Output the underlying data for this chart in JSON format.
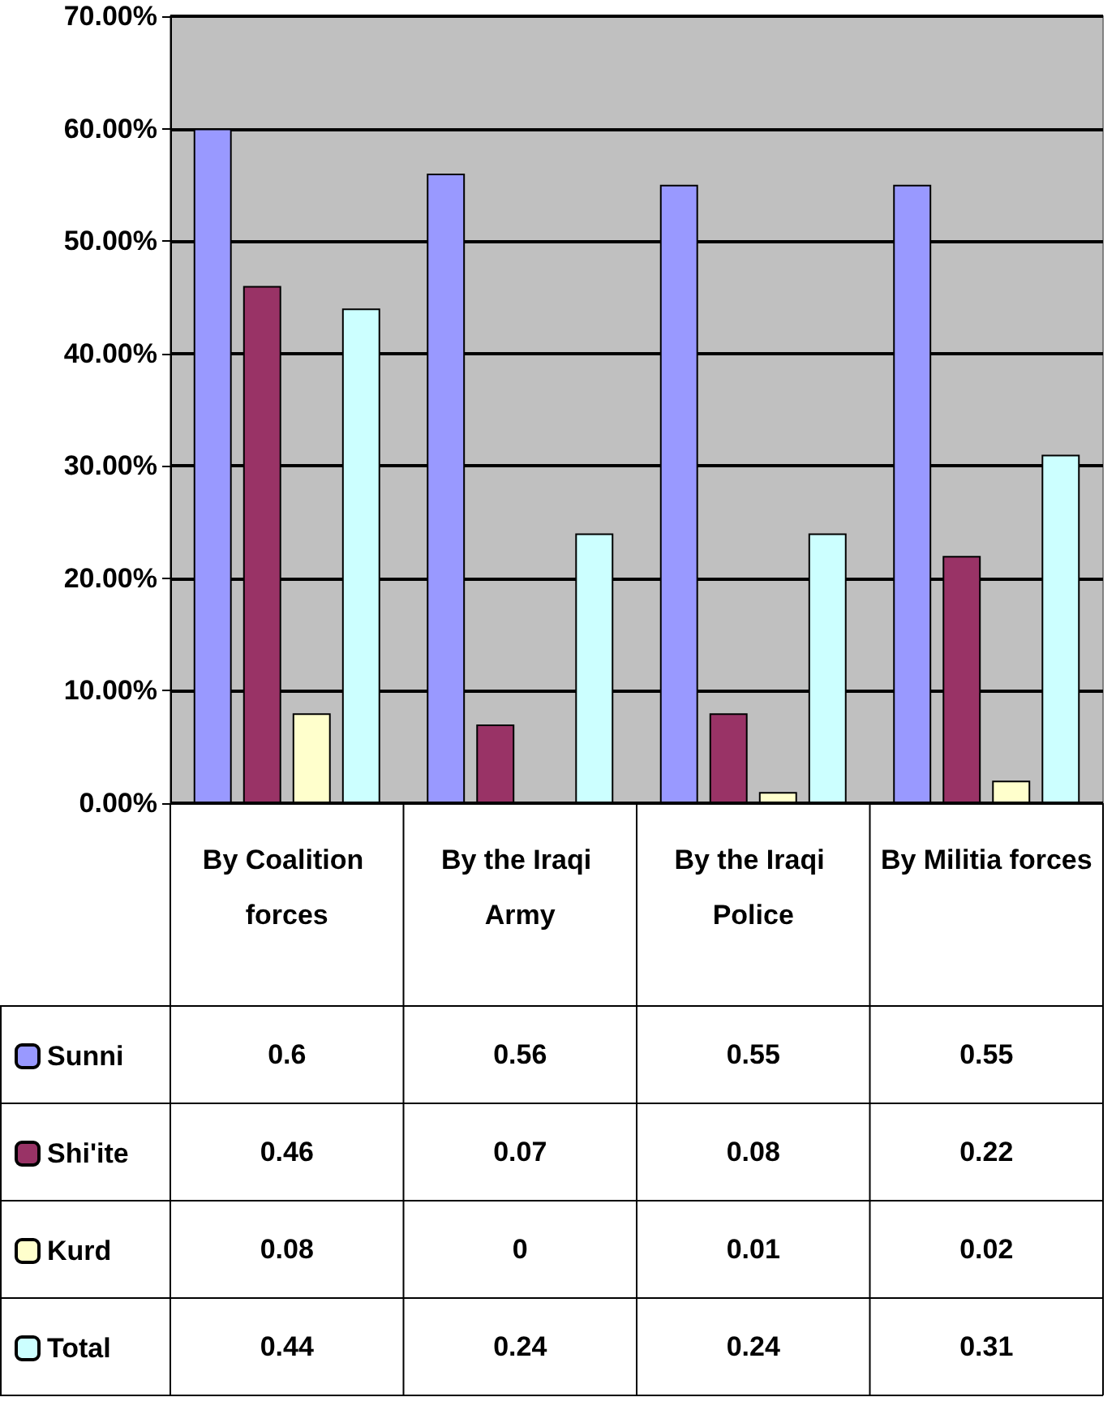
{
  "chart_data": {
    "type": "bar",
    "categories": [
      "By Coalition forces",
      "By the Iraqi Army",
      "By the Iraqi Police",
      "By Militia forces"
    ],
    "series": [
      {
        "name": "Sunni",
        "color": "#9999ff",
        "values": [
          0.6,
          0.56,
          0.55,
          0.55
        ]
      },
      {
        "name": "Shi'ite",
        "color": "#993366",
        "values": [
          0.46,
          0.07,
          0.08,
          0.22
        ]
      },
      {
        "name": "Kurd",
        "color": "#ffffcc",
        "values": [
          0.08,
          0,
          0.01,
          0.02
        ]
      },
      {
        "name": "Total",
        "color": "#ccffff",
        "values": [
          0.44,
          0.24,
          0.24,
          0.31
        ]
      }
    ],
    "ylim": [
      0,
      0.7
    ],
    "yticks": [
      {
        "value": 0,
        "label": "0.00%"
      },
      {
        "value": 0.1,
        "label": "10.00%"
      },
      {
        "value": 0.2,
        "label": "20.00%"
      },
      {
        "value": 0.3,
        "label": "30.00%"
      },
      {
        "value": 0.4,
        "label": "40.00%"
      },
      {
        "value": 0.5,
        "label": "50.00%"
      },
      {
        "value": 0.6,
        "label": "60.00%"
      },
      {
        "value": 0.7,
        "label": "70.00%"
      }
    ],
    "grid": "y",
    "legend": "bottom left",
    "data_labels": true
  }
}
